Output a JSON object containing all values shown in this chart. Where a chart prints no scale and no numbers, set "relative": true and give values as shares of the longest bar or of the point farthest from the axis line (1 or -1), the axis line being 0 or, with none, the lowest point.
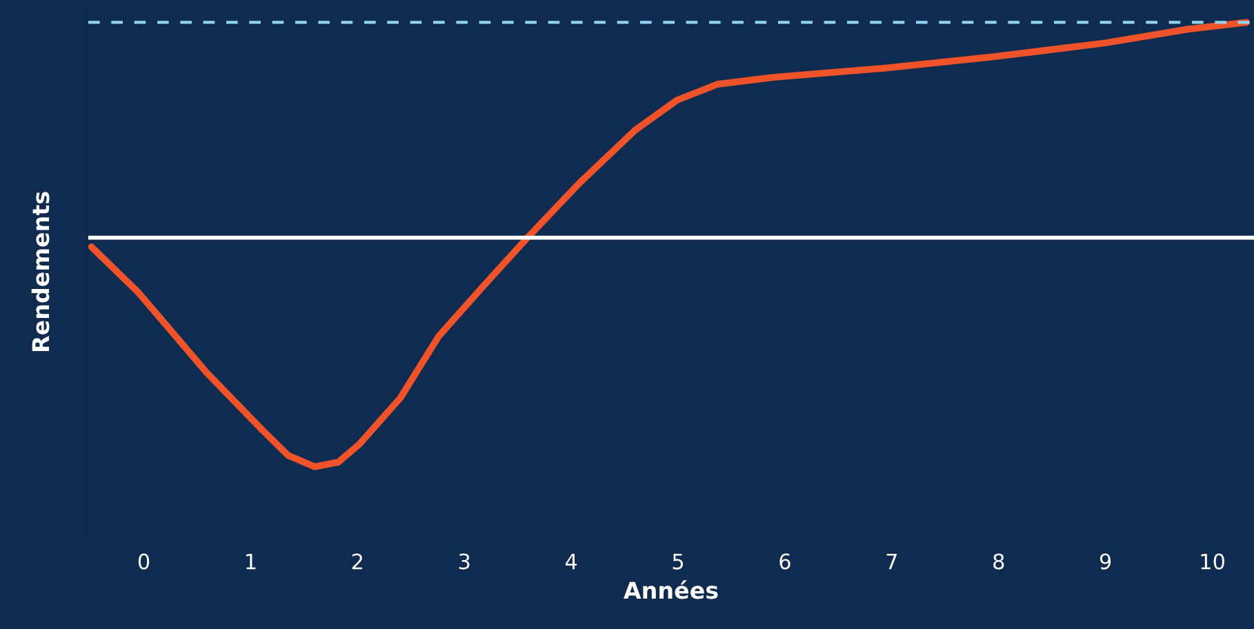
{
  "chart_data": {
    "type": "line",
    "xlabel": "Années",
    "ylabel": "Rendements",
    "relative": true,
    "xlim": [
      -0.52,
      10.39
    ],
    "xticks": [
      0,
      1,
      2,
      3,
      4,
      5,
      6,
      7,
      8,
      9,
      10
    ],
    "series": [
      {
        "color": "#f0532a",
        "x": [
          -0.49,
          -0.05,
          0.59,
          1.11,
          1.35,
          1.6,
          1.82,
          2.02,
          2.4,
          2.76,
          3.18,
          3.57,
          4.08,
          4.6,
          4.99,
          5.37,
          5.89,
          6.93,
          7.96,
          9.0,
          9.77,
          10.32
        ],
        "values": [
          -0.04,
          -0.24,
          -0.59,
          -0.84,
          -0.95,
          -1.0,
          -0.98,
          -0.9,
          -0.7,
          -0.43,
          -0.21,
          -0.01,
          0.24,
          0.47,
          0.6,
          0.67,
          0.7,
          0.74,
          0.79,
          0.85,
          0.91,
          0.94
        ]
      }
    ],
    "ref_lines": [
      {
        "axis": "y",
        "value": 0.94,
        "label": null,
        "color": "#8fd3f0",
        "line_style": "dashed"
      }
    ],
    "marker": "none",
    "line_style": "solid",
    "grid": false,
    "legend": false
  }
}
